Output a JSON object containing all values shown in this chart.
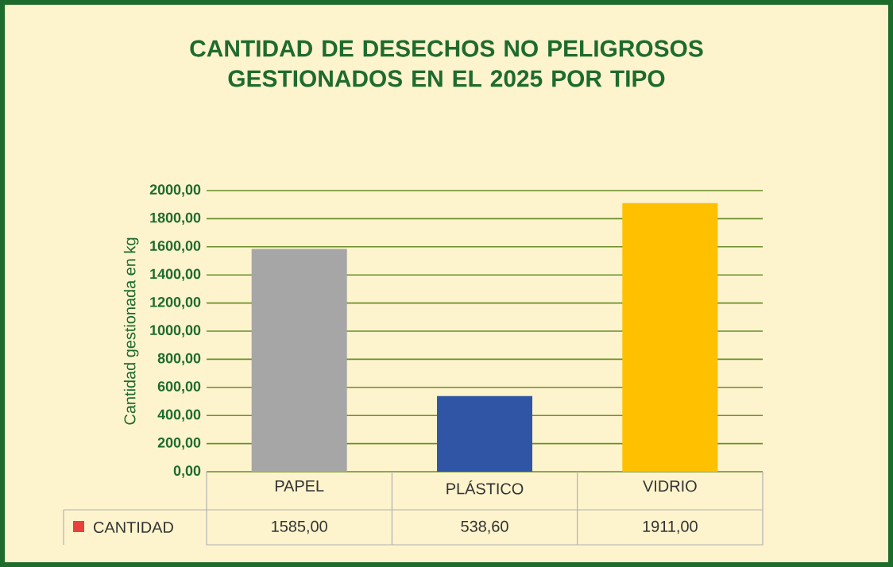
{
  "chart_data": {
    "type": "bar",
    "title": "CANTIDAD DE DESECHOS NO PELIGROSOS GESTIONADOS EN EL 2025 POR TIPO",
    "ylabel": "Cantidad gestionada en kg",
    "categories": [
      "PAPEL",
      "PLÁSTICO",
      "VIDRIO"
    ],
    "series": [
      {
        "name": "CANTIDAD",
        "color": "#e8413c",
        "colors": [
          "#a6a6a6",
          "#2f55a4",
          "#ffc000"
        ],
        "values": [
          1585,
          538.6,
          1911
        ],
        "value_labels": [
          "1585,00",
          "538,60",
          "1911,00"
        ]
      }
    ],
    "ylim": [
      0,
      2000
    ],
    "yticks": [
      {
        "value": 0,
        "label": "0,00"
      },
      {
        "value": 200,
        "label": "200,00"
      },
      {
        "value": 400,
        "label": "400,00"
      },
      {
        "value": 600,
        "label": "600,00"
      },
      {
        "value": 800,
        "label": "800,00"
      },
      {
        "value": 1000,
        "label": "1000,00"
      },
      {
        "value": 1200,
        "label": "1200,00"
      },
      {
        "value": 1400,
        "label": "1400,00"
      },
      {
        "value": 1600,
        "label": "1600,00"
      },
      {
        "value": 1800,
        "label": "1800,00"
      },
      {
        "value": 2000,
        "label": "2000,00"
      }
    ],
    "grid": "y",
    "legend": "bottom left"
  }
}
